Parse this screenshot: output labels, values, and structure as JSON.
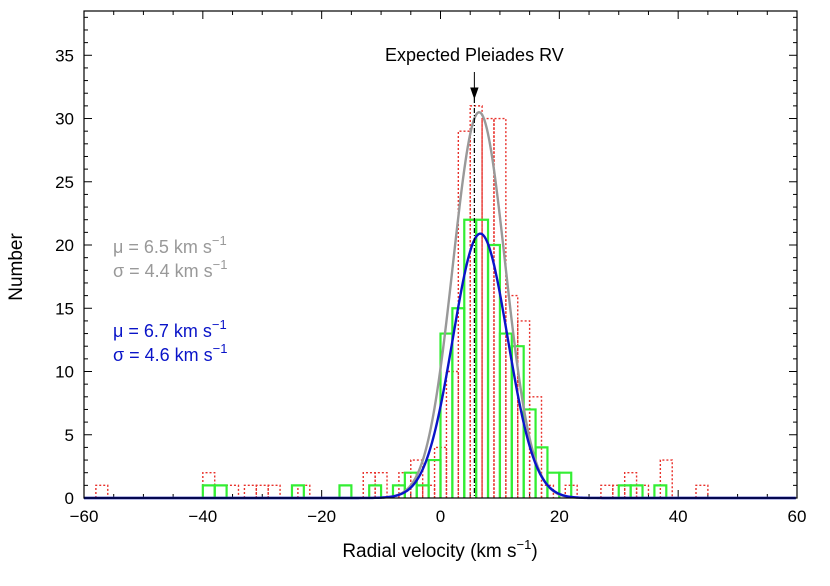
{
  "chart_data": {
    "type": "histogram",
    "xlabel_text": "Radial velocity (km s",
    "xlabel_sup": "−1",
    "xlabel_close": ")",
    "ylabel": "Number",
    "xlim": [
      -60,
      60
    ],
    "ylim": [
      0,
      38.5
    ],
    "xticks": [
      -60,
      -40,
      -20,
      0,
      20,
      40,
      60
    ],
    "xtick_labels": [
      "−60",
      "−40",
      "−20",
      "0",
      "20",
      "40",
      "60"
    ],
    "yticks": [
      0,
      5,
      10,
      15,
      20,
      25,
      30,
      35
    ],
    "ytick_labels": [
      "0",
      "5",
      "10",
      "15",
      "20",
      "25",
      "30",
      "35"
    ],
    "x_minor_step": 5,
    "y_minor_step": 1,
    "bin_width": 2,
    "marker": {
      "x": 5.7,
      "label": "Expected Pleiades RV"
    },
    "series": [
      {
        "style": "dotted-histogram",
        "color": "#e8312b",
        "bins": [
          {
            "x": -58,
            "y": 1
          },
          {
            "x": -40,
            "y": 2
          },
          {
            "x": -38,
            "y": 1
          },
          {
            "x": -36,
            "y": 1
          },
          {
            "x": -33,
            "y": 1
          },
          {
            "x": -31,
            "y": 1
          },
          {
            "x": -29,
            "y": 1
          },
          {
            "x": -24,
            "y": 1
          },
          {
            "x": -17,
            "y": 1
          },
          {
            "x": -13,
            "y": 2
          },
          {
            "x": -11,
            "y": 2
          },
          {
            "x": -7,
            "y": 2
          },
          {
            "x": -5,
            "y": 3
          },
          {
            "x": -3,
            "y": 1
          },
          {
            "x": -1,
            "y": 4
          },
          {
            "x": 1,
            "y": 10
          },
          {
            "x": 3,
            "y": 29
          },
          {
            "x": 5,
            "y": 31
          },
          {
            "x": 7,
            "y": 30
          },
          {
            "x": 9,
            "y": 30
          },
          {
            "x": 11,
            "y": 16
          },
          {
            "x": 13,
            "y": 14
          },
          {
            "x": 15,
            "y": 8
          },
          {
            "x": 17,
            "y": 1
          },
          {
            "x": 21,
            "y": 1
          },
          {
            "x": 27,
            "y": 1
          },
          {
            "x": 29,
            "y": 1
          },
          {
            "x": 31,
            "y": 2
          },
          {
            "x": 33,
            "y": 1
          },
          {
            "x": 37,
            "y": 3
          },
          {
            "x": 43,
            "y": 1
          }
        ]
      },
      {
        "style": "solid-histogram",
        "color": "#33ee33",
        "bins": [
          {
            "x": -40,
            "y": 1
          },
          {
            "x": -38,
            "y": 1
          },
          {
            "x": -25,
            "y": 1
          },
          {
            "x": -17,
            "y": 1
          },
          {
            "x": -12,
            "y": 1
          },
          {
            "x": -8,
            "y": 1
          },
          {
            "x": -6,
            "y": 2
          },
          {
            "x": -4,
            "y": 1
          },
          {
            "x": -2,
            "y": 3
          },
          {
            "x": 0,
            "y": 13
          },
          {
            "x": 2,
            "y": 15
          },
          {
            "x": 4,
            "y": 22
          },
          {
            "x": 6,
            "y": 22
          },
          {
            "x": 8,
            "y": 20
          },
          {
            "x": 10,
            "y": 13
          },
          {
            "x": 12,
            "y": 12
          },
          {
            "x": 14,
            "y": 7
          },
          {
            "x": 16,
            "y": 4
          },
          {
            "x": 18,
            "y": 2
          },
          {
            "x": 20,
            "y": 2
          },
          {
            "x": 30,
            "y": 1
          },
          {
            "x": 32,
            "y": 1
          },
          {
            "x": 36,
            "y": 1
          }
        ]
      },
      {
        "style": "gaussian",
        "color": "#999999",
        "mu": 6.5,
        "sigma": 4.4,
        "amplitude": 30.5
      },
      {
        "style": "gaussian",
        "color": "#0a14c8",
        "mu": 6.7,
        "sigma": 4.6,
        "amplitude": 20.9
      }
    ],
    "annotations": {
      "gray": {
        "color": "#999999",
        "mu_text": "μ = 6.5 km s",
        "sigma_text": "σ = 4.4 km s",
        "sup": "−1"
      },
      "blue": {
        "color": "#0a14c8",
        "mu_text": "μ = 6.7 km s",
        "sigma_text": "σ = 4.6 km s",
        "sup": "−1"
      }
    }
  }
}
